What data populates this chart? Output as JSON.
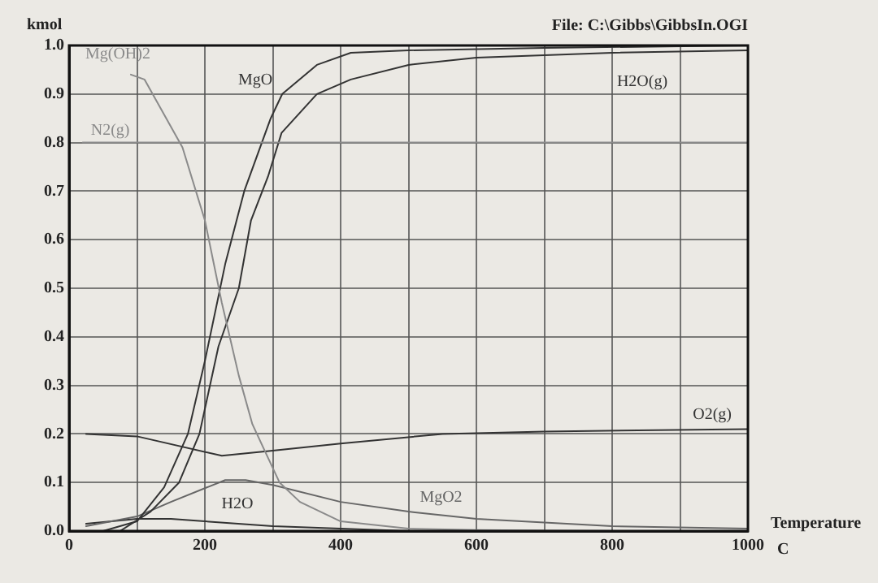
{
  "chart_data": {
    "type": "line",
    "title": "File: C:\\Gibbs\\GibbsIn.OGI",
    "xlabel": "Temperature C",
    "ylabel": "kmol",
    "legend": false,
    "grid": true,
    "marker": "none",
    "line_style": "solid",
    "xlim": [
      0,
      1000
    ],
    "ylim": [
      0,
      1
    ],
    "xticks": [
      0,
      {
        "value": 100,
        "label": null
      },
      200,
      {
        "value": 300,
        "label": null
      },
      400,
      {
        "value": 500,
        "label": null
      },
      600,
      {
        "value": 700,
        "label": null
      },
      800,
      {
        "value": 900,
        "label": null
      },
      1000
    ],
    "yticks": [
      {
        "value": 0,
        "label": "0.0"
      },
      {
        "value": 0.1,
        "label": "0.1"
      },
      {
        "value": 0.2,
        "label": "0.2"
      },
      {
        "value": 0.3,
        "label": "0.3"
      },
      {
        "value": 0.4,
        "label": "0.4"
      },
      {
        "value": 0.5,
        "label": "0.5"
      },
      {
        "value": 0.6,
        "label": "0.6"
      },
      {
        "value": 0.7,
        "label": "0.7"
      },
      {
        "value": 0.8,
        "label": "0.8"
      },
      {
        "value": 0.9,
        "label": "0.9"
      },
      {
        "value": 1,
        "label": "1.0"
      }
    ],
    "series": [
      {
        "name": "Mg(OH)2",
        "color": "#8a8a8a",
        "x": [
          91,
          111,
          167,
          200,
          225,
          250,
          270,
          290,
          310,
          340,
          400,
          500,
          600,
          800,
          1000
        ],
        "values": [
          0.94,
          0.93,
          0.79,
          0.64,
          0.47,
          0.32,
          0.22,
          0.16,
          0.1,
          0.06,
          0.02,
          0.005,
          0.002,
          0,
          0
        ]
      },
      {
        "name": "N2(g)",
        "color": "#8a8a8a",
        "x": [
          20,
          1000
        ],
        "values": [
          0.8,
          0.8
        ]
      },
      {
        "name": "H2O(g)",
        "color": "#333333",
        "x": [
          75,
          120,
          162,
          192,
          220,
          250,
          268,
          293,
          313,
          365,
          415,
          500,
          600,
          800,
          1000
        ],
        "values": [
          0,
          0.04,
          0.1,
          0.2,
          0.38,
          0.5,
          0.64,
          0.73,
          0.82,
          0.9,
          0.93,
          0.96,
          0.975,
          0.985,
          0.99
        ]
      },
      {
        "name": "MgO",
        "color": "#333333",
        "x": [
          50,
          100,
          140,
          175,
          200,
          230,
          258,
          297,
          314,
          365,
          415,
          500,
          700,
          1000
        ],
        "values": [
          0,
          0.02,
          0.09,
          0.2,
          0.35,
          0.55,
          0.7,
          0.85,
          0.9,
          0.96,
          0.985,
          0.99,
          0.995,
          1
        ]
      },
      {
        "name": "O2(g)",
        "color": "#333333",
        "x": [
          25,
          100,
          225,
          297,
          400,
          550,
          700,
          1000
        ],
        "values": [
          0.2,
          0.195,
          0.155,
          0.165,
          0.18,
          0.2,
          0.205,
          0.21
        ]
      },
      {
        "name": "MgO2",
        "color": "#666666",
        "x": [
          25,
          100,
          150,
          230,
          260,
          300,
          400,
          500,
          600,
          800,
          1000
        ],
        "values": [
          0.01,
          0.03,
          0.06,
          0.105,
          0.105,
          0.095,
          0.06,
          0.04,
          0.025,
          0.01,
          0.005
        ]
      },
      {
        "name": "H2O",
        "color": "#333333",
        "x": [
          25,
          100,
          150,
          200,
          300,
          400,
          500
        ],
        "values": [
          0.015,
          0.025,
          0.025,
          0.02,
          0.01,
          0.005,
          0
        ]
      }
    ]
  }
}
